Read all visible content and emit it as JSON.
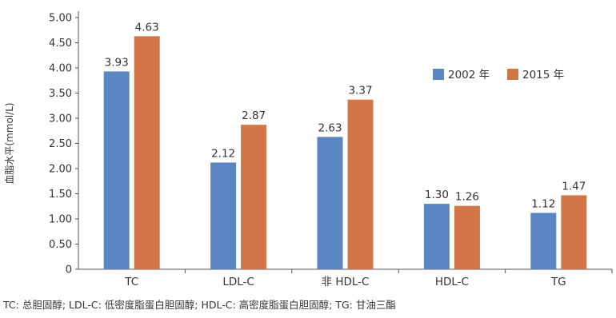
{
  "chart_data": {
    "type": "bar",
    "ylabel": "血脂水平(mmol/L)",
    "xlabel": "",
    "ylim": [
      0,
      5.0
    ],
    "yticks": [
      "0",
      "0.50",
      "1.00",
      "1.50",
      "2.00",
      "2.50",
      "3.00",
      "3.50",
      "4.00",
      "4.50",
      "5.00"
    ],
    "categories": [
      "TC",
      "LDL-C",
      "非 HDL-C",
      "HDL-C",
      "TG"
    ],
    "series": [
      {
        "name": "2002 年",
        "color": "#5b86c3",
        "values": [
          3.93,
          2.12,
          2.63,
          1.3,
          1.12
        ],
        "labels": [
          "3.93",
          "2.12",
          "2.63",
          "1.30",
          "1.12"
        ]
      },
      {
        "name": "2015 年",
        "color": "#d2764a",
        "values": [
          4.63,
          2.87,
          3.37,
          1.26,
          1.47
        ],
        "labels": [
          "4.63",
          "2.87",
          "3.37",
          "1.26",
          "1.47"
        ]
      }
    ],
    "legend": "upper-right",
    "grid": false
  },
  "footnote": "TC: 总胆固醇; LDL-C: 低密度脂蛋白胆固醇; HDL-C: 高密度脂蛋白胆固醇; TG: 甘油三酯"
}
